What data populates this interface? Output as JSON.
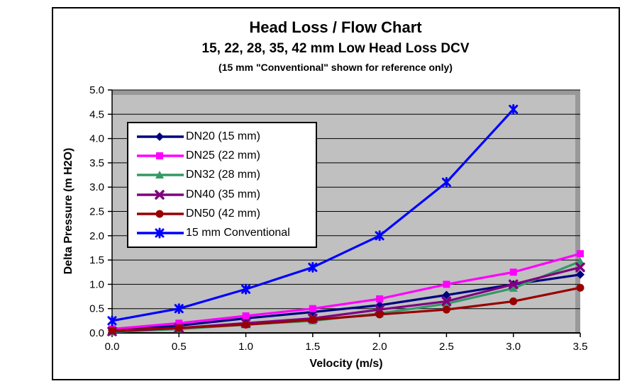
{
  "chart": {
    "title": "Head Loss / Flow Chart",
    "subtitle": "15, 22, 28, 35, 42 mm Low Head Loss DCV",
    "note": "(15 mm \"Conventional\" shown for reference only)",
    "xlabel": "Velocity (m/s)",
    "ylabel": "Delta Pressure (m H2O)"
  },
  "chart_data": {
    "type": "line",
    "title": "Head Loss / Flow Chart",
    "xlabel": "Velocity (m/s)",
    "ylabel": "Delta Pressure (m H2O)",
    "xlim": [
      0,
      3.5
    ],
    "ylim": [
      0,
      5.0
    ],
    "grid": "horizontal",
    "legend_position": "upper-left-inside",
    "plot_bg_color": "#c0c0c0",
    "plot_shadow_color": "#999999",
    "x": [
      0.0,
      0.5,
      1.0,
      1.5,
      2.0,
      2.5,
      3.0,
      3.5
    ],
    "x_tick_labels": [
      "0.0",
      "0.5",
      "1.0",
      "1.5",
      "2.0",
      "2.5",
      "3.0",
      "3.5"
    ],
    "y_tick_values": [
      0.0,
      0.5,
      1.0,
      1.5,
      2.0,
      2.5,
      3.0,
      3.5,
      4.0,
      4.5,
      5.0
    ],
    "y_tick_labels": [
      "0.0",
      "0.5",
      "1.0",
      "1.5",
      "2.0",
      "2.5",
      "3.0",
      "3.5",
      "4.0",
      "4.5",
      "5.0"
    ],
    "series": [
      {
        "name": "DN20 (15 mm)",
        "color": "#000080",
        "marker": "diamond",
        "values": [
          0.05,
          0.15,
          0.3,
          0.43,
          0.57,
          0.78,
          1.0,
          1.2
        ]
      },
      {
        "name": "DN25 (22 mm)",
        "color": "#ff00ff",
        "marker": "square",
        "values": [
          0.08,
          0.2,
          0.35,
          0.5,
          0.7,
          1.0,
          1.25,
          1.63
        ]
      },
      {
        "name": "DN32 (28 mm)",
        "color": "#339966",
        "marker": "triangle",
        "values": [
          0.02,
          0.08,
          0.17,
          0.25,
          0.4,
          0.6,
          0.92,
          1.47
        ]
      },
      {
        "name": "DN40 (35 mm)",
        "color": "#800080",
        "marker": "x",
        "values": [
          0.03,
          0.1,
          0.2,
          0.3,
          0.48,
          0.65,
          1.0,
          1.35
        ]
      },
      {
        "name": "DN50 (42 mm)",
        "color": "#990000",
        "marker": "circle",
        "values": [
          0.05,
          0.1,
          0.17,
          0.27,
          0.38,
          0.48,
          0.65,
          0.93
        ]
      },
      {
        "name": "15 mm Conventional",
        "color": "#0000ff",
        "marker": "star",
        "values": [
          0.25,
          0.5,
          0.9,
          1.35,
          2.0,
          3.1,
          4.6,
          null
        ]
      }
    ]
  }
}
